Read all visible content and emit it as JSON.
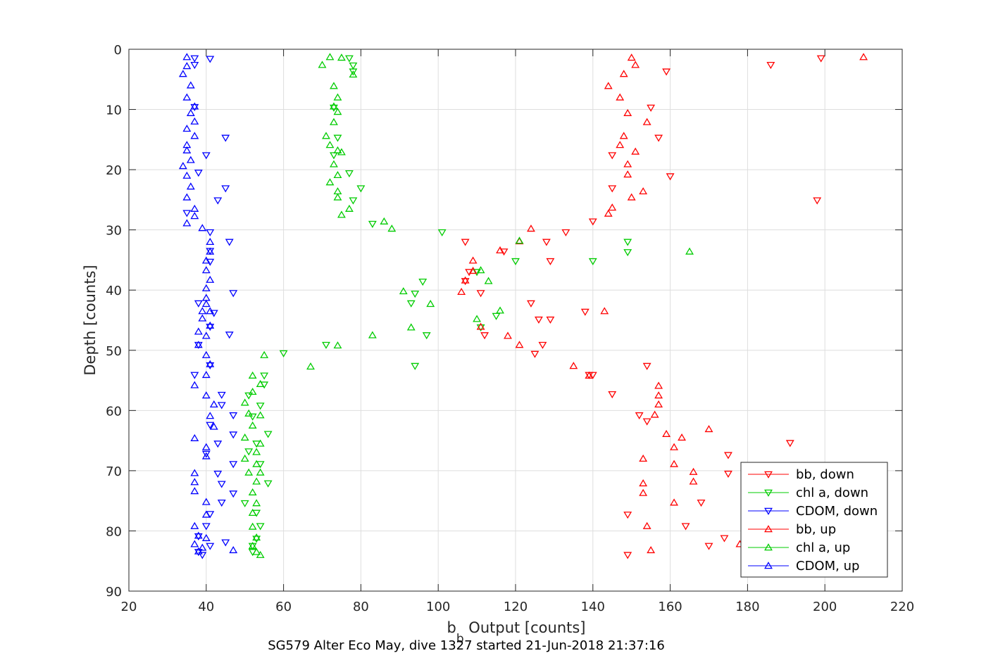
{
  "chart_data": {
    "type": "scatter",
    "title": "SG579 Alter Eco May, dive 1327 started 21-Jun-2018 21:37:16",
    "xlabel_main": "b",
    "xlabel_sub": "b",
    "xlabel_rest": " Output [counts]",
    "ylabel": "Depth [counts]",
    "xlim": [
      20,
      220
    ],
    "ylim": [
      0,
      90
    ],
    "y_reversed": true,
    "grid": true,
    "xticks": [
      20,
      40,
      60,
      80,
      100,
      120,
      140,
      160,
      180,
      200,
      220
    ],
    "yticks": [
      0,
      10,
      20,
      30,
      40,
      50,
      60,
      70,
      80,
      90
    ],
    "legend_position": "lower-right",
    "series": [
      {
        "name": "bb, down",
        "color": "#ff0000",
        "marker": "triangle-down",
        "points": [
          [
            199,
            1.5
          ],
          [
            186,
            2.6
          ],
          [
            159,
            3.7
          ],
          [
            155,
            9.7
          ],
          [
            157,
            14.7
          ],
          [
            145,
            17.6
          ],
          [
            160,
            21.1
          ],
          [
            145,
            23.1
          ],
          [
            198,
            25.1
          ],
          [
            140,
            28.6
          ],
          [
            133,
            30.4
          ],
          [
            107,
            32
          ],
          [
            128,
            32
          ],
          [
            117,
            33.6
          ],
          [
            129,
            35.2
          ],
          [
            108,
            37
          ],
          [
            107,
            38.5
          ],
          [
            111,
            40.5
          ],
          [
            124,
            42.2
          ],
          [
            138,
            43.6
          ],
          [
            126,
            44.9
          ],
          [
            129,
            44.9
          ],
          [
            112,
            47.5
          ],
          [
            127,
            49.1
          ],
          [
            125,
            50.6
          ],
          [
            154,
            52.6
          ],
          [
            139,
            54.1
          ],
          [
            140,
            54.1
          ],
          [
            145,
            57.3
          ],
          [
            152,
            60.8
          ],
          [
            154,
            61.8
          ],
          [
            191,
            65.4
          ],
          [
            175,
            67.4
          ],
          [
            175,
            70.5
          ],
          [
            168,
            75.3
          ],
          [
            149,
            77.3
          ],
          [
            164,
            79.2
          ],
          [
            174,
            81.2
          ],
          [
            170,
            82.5
          ],
          [
            149,
            84
          ]
        ]
      },
      {
        "name": "chl a, down",
        "color": "#00cc00",
        "marker": "triangle-down",
        "points": [
          [
            77,
            1.5
          ],
          [
            78,
            2.7
          ],
          [
            78,
            3.7
          ],
          [
            73,
            9.7
          ],
          [
            74,
            14.7
          ],
          [
            73,
            17.6
          ],
          [
            77,
            20.6
          ],
          [
            80,
            23.1
          ],
          [
            78,
            25.1
          ],
          [
            83,
            29
          ],
          [
            101,
            30.4
          ],
          [
            149,
            32
          ],
          [
            149,
            33.7
          ],
          [
            120,
            35.2
          ],
          [
            140,
            35.2
          ],
          [
            110,
            37
          ],
          [
            96,
            38.6
          ],
          [
            94,
            40.6
          ],
          [
            93,
            42.2
          ],
          [
            115,
            44.3
          ],
          [
            111,
            46.2
          ],
          [
            97,
            47.5
          ],
          [
            71,
            49.1
          ],
          [
            60,
            50.5
          ],
          [
            94,
            52.6
          ],
          [
            55,
            54.2
          ],
          [
            55,
            55.7
          ],
          [
            51,
            57.5
          ],
          [
            54,
            59.2
          ],
          [
            52,
            61
          ],
          [
            56,
            63.9
          ],
          [
            53,
            65.5
          ],
          [
            51,
            66.8
          ],
          [
            54,
            68.9
          ],
          [
            56,
            72.1
          ],
          [
            50,
            75.4
          ],
          [
            53,
            77
          ],
          [
            54,
            79.2
          ],
          [
            53,
            81.3
          ],
          [
            52,
            82.5
          ],
          [
            52,
            83.5
          ]
        ]
      },
      {
        "name": "CDOM, down",
        "color": "#0000ff",
        "marker": "triangle-down",
        "points": [
          [
            37,
            1.5
          ],
          [
            41,
            1.6
          ],
          [
            37,
            2.6
          ],
          [
            37,
            9.6
          ],
          [
            45,
            14.7
          ],
          [
            40,
            17.6
          ],
          [
            38,
            20.5
          ],
          [
            45,
            23.1
          ],
          [
            43,
            25.1
          ],
          [
            35,
            27.2
          ],
          [
            41,
            30.4
          ],
          [
            46,
            32
          ],
          [
            41,
            33.5
          ],
          [
            41,
            35.3
          ],
          [
            47,
            40.5
          ],
          [
            38,
            42.2
          ],
          [
            42,
            43.8
          ],
          [
            41,
            46.1
          ],
          [
            46,
            47.4
          ],
          [
            38,
            49.1
          ],
          [
            41,
            52.5
          ],
          [
            37,
            54.1
          ],
          [
            44,
            57.4
          ],
          [
            44,
            59.1
          ],
          [
            47,
            60.8
          ],
          [
            41,
            62.4
          ],
          [
            47,
            64
          ],
          [
            43,
            65.5
          ],
          [
            40,
            67.2
          ],
          [
            47,
            68.9
          ],
          [
            43,
            70.5
          ],
          [
            44,
            72.2
          ],
          [
            47,
            73.8
          ],
          [
            44,
            75.3
          ],
          [
            41,
            77.2
          ],
          [
            40,
            79.2
          ],
          [
            38,
            80.9
          ],
          [
            45,
            81.9
          ],
          [
            41,
            82.5
          ],
          [
            38,
            83.5
          ],
          [
            39,
            84
          ]
        ]
      },
      {
        "name": "bb, up",
        "color": "#ff0000",
        "marker": "triangle-up",
        "points": [
          [
            210,
            1.3
          ],
          [
            150,
            1.4
          ],
          [
            151,
            2.6
          ],
          [
            148,
            4.1
          ],
          [
            144,
            6.1
          ],
          [
            147,
            8
          ],
          [
            149,
            10.6
          ],
          [
            154,
            12.1
          ],
          [
            148,
            14.4
          ],
          [
            147,
            15.9
          ],
          [
            151,
            17
          ],
          [
            149,
            19.1
          ],
          [
            149,
            20.8
          ],
          [
            153,
            23.6
          ],
          [
            150,
            24.6
          ],
          [
            145,
            26.3
          ],
          [
            144,
            27.3
          ],
          [
            124,
            29.8
          ],
          [
            121,
            31.9
          ],
          [
            116,
            33.4
          ],
          [
            109,
            35.1
          ],
          [
            109,
            36.8
          ],
          [
            107,
            38.4
          ],
          [
            106,
            40.3
          ],
          [
            143,
            43.5
          ],
          [
            111,
            46.1
          ],
          [
            118,
            47.6
          ],
          [
            121,
            49.1
          ],
          [
            135,
            52.6
          ],
          [
            139,
            54.2
          ],
          [
            157,
            55.9
          ],
          [
            157,
            57.5
          ],
          [
            157,
            59
          ],
          [
            156,
            60.7
          ],
          [
            159,
            63.9
          ],
          [
            163,
            64.5
          ],
          [
            170,
            63.1
          ],
          [
            161,
            66.1
          ],
          [
            153,
            68
          ],
          [
            161,
            68.9
          ],
          [
            166,
            70.2
          ],
          [
            166,
            71.8
          ],
          [
            153,
            72.1
          ],
          [
            153,
            73.7
          ],
          [
            161,
            75.3
          ],
          [
            154,
            79.2
          ],
          [
            155,
            83.2
          ],
          [
            178,
            82.2
          ]
        ]
      },
      {
        "name": "chl a, up",
        "color": "#00cc00",
        "marker": "triangle-up",
        "points": [
          [
            72,
            1.3
          ],
          [
            75,
            1.4
          ],
          [
            70,
            2.6
          ],
          [
            78,
            4.2
          ],
          [
            73,
            6.1
          ],
          [
            74,
            8
          ],
          [
            73,
            9.5
          ],
          [
            74,
            10.4
          ],
          [
            73,
            12.1
          ],
          [
            71,
            14.4
          ],
          [
            72,
            15.9
          ],
          [
            74,
            16.8
          ],
          [
            75,
            17.1
          ],
          [
            73,
            19.1
          ],
          [
            74,
            20.9
          ],
          [
            72,
            22.1
          ],
          [
            74,
            23.6
          ],
          [
            74,
            24.6
          ],
          [
            77,
            26.5
          ],
          [
            75,
            27.5
          ],
          [
            86,
            28.6
          ],
          [
            88,
            29.8
          ],
          [
            121,
            31.8
          ],
          [
            165,
            33.6
          ],
          [
            111,
            36.7
          ],
          [
            113,
            38.5
          ],
          [
            91,
            40.2
          ],
          [
            98,
            42.3
          ],
          [
            116,
            43.4
          ],
          [
            110,
            44.8
          ],
          [
            93,
            46.2
          ],
          [
            83,
            47.5
          ],
          [
            74,
            49.2
          ],
          [
            55,
            50.8
          ],
          [
            67,
            52.7
          ],
          [
            52,
            54.2
          ],
          [
            54,
            55.6
          ],
          [
            52,
            56.9
          ],
          [
            50,
            58.7
          ],
          [
            51,
            60.5
          ],
          [
            54,
            60.8
          ],
          [
            52,
            62.5
          ],
          [
            50,
            64.5
          ],
          [
            54,
            65.5
          ],
          [
            53,
            66.9
          ],
          [
            50,
            68
          ],
          [
            53,
            68.9
          ],
          [
            51,
            70.3
          ],
          [
            54,
            70.3
          ],
          [
            53,
            71.8
          ],
          [
            52,
            73.6
          ],
          [
            53,
            75.4
          ],
          [
            52,
            77
          ],
          [
            52,
            79.3
          ],
          [
            53,
            81.1
          ],
          [
            52,
            82.5
          ],
          [
            53,
            83.5
          ],
          [
            54,
            84
          ]
        ]
      },
      {
        "name": "CDOM, up",
        "color": "#0000ff",
        "marker": "triangle-up",
        "points": [
          [
            35,
            1.3
          ],
          [
            35,
            2.8
          ],
          [
            34,
            4.1
          ],
          [
            36,
            6
          ],
          [
            35,
            8
          ],
          [
            37,
            9.5
          ],
          [
            36,
            10.6
          ],
          [
            37,
            12
          ],
          [
            35,
            13.2
          ],
          [
            37,
            14.4
          ],
          [
            35,
            15.9
          ],
          [
            35,
            16.8
          ],
          [
            36,
            18.4
          ],
          [
            34,
            19.4
          ],
          [
            35,
            21
          ],
          [
            36,
            22.8
          ],
          [
            35,
            24.6
          ],
          [
            37,
            26.5
          ],
          [
            37,
            27.7
          ],
          [
            35,
            28.9
          ],
          [
            39,
            29.7
          ],
          [
            41,
            32
          ],
          [
            41,
            33.6
          ],
          [
            40,
            35.1
          ],
          [
            40,
            36.7
          ],
          [
            41,
            38.3
          ],
          [
            40,
            39.7
          ],
          [
            40,
            41.3
          ],
          [
            40,
            42.3
          ],
          [
            39,
            43.5
          ],
          [
            41,
            43.5
          ],
          [
            39,
            44.7
          ],
          [
            41,
            45.9
          ],
          [
            38,
            46.9
          ],
          [
            40,
            47.6
          ],
          [
            38,
            49.1
          ],
          [
            40,
            50.8
          ],
          [
            41,
            52.3
          ],
          [
            40,
            54.1
          ],
          [
            37,
            55.8
          ],
          [
            40,
            57.5
          ],
          [
            42,
            59
          ],
          [
            41,
            60.9
          ],
          [
            42,
            62.7
          ],
          [
            37,
            64.6
          ],
          [
            40,
            66.1
          ],
          [
            40,
            67.6
          ],
          [
            37,
            70.4
          ],
          [
            37,
            71.9
          ],
          [
            37,
            73.4
          ],
          [
            40,
            75.2
          ],
          [
            40,
            77.3
          ],
          [
            37,
            79.2
          ],
          [
            38,
            80.8
          ],
          [
            40,
            81.2
          ],
          [
            37,
            82.2
          ],
          [
            39,
            82.8
          ],
          [
            38,
            83.4
          ],
          [
            47,
            83.2
          ]
        ]
      }
    ]
  }
}
